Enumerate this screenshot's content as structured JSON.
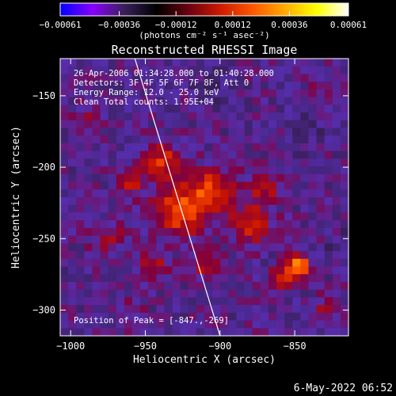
{
  "footer_date": "6-May-2022 06:52",
  "chart_data": {
    "type": "heatmap",
    "title": "Reconstructed RHESSI Image",
    "xlabel": "Heliocentric X (arcsec)",
    "ylabel": "Heliocentric Y (arcsec)",
    "xlim": [
      -1007,
      -814
    ],
    "ylim": [
      -318,
      -124
    ],
    "x_ticks": [
      {
        "value": -1000,
        "label": "−1000"
      },
      {
        "value": -950,
        "label": "−950"
      },
      {
        "value": -900,
        "label": "−900"
      },
      {
        "value": -850,
        "label": "−850"
      }
    ],
    "y_ticks": [
      {
        "value": -150,
        "label": "−150"
      },
      {
        "value": -200,
        "label": "−200"
      },
      {
        "value": -250,
        "label": "−250"
      },
      {
        "value": -300,
        "label": "−300"
      }
    ],
    "colorbar": {
      "range": [
        -0.00061,
        0.00061
      ],
      "ticks": [
        {
          "value": -0.00061,
          "label": "−0.00061"
        },
        {
          "value": -0.00036,
          "label": "−0.00036"
        },
        {
          "value": -0.00012,
          "label": "−0.00012"
        },
        {
          "value": 0.00012,
          "label": "0.00012"
        },
        {
          "value": 0.00036,
          "label": "0.00036"
        },
        {
          "value": 0.00061,
          "label": "0.00061"
        }
      ],
      "unit_label": "(photons cm⁻² s⁻¹ asec⁻²)",
      "colors": [
        "#0000ff",
        "#8800ff",
        "#3a1f5a",
        "#000000",
        "#6a0010",
        "#cc1a00",
        "#ff5500",
        "#ffaa00",
        "#ffff00",
        "#ffffff"
      ]
    },
    "annotations": [
      "26-Apr-2006 01:34:28.000 to 01:40:28.000",
      "Detectors: 3F 4F 5F 6F 7F 8F, Att 0",
      "Energy Range: 12.0 - 25.0 keV",
      "Clean     Total counts: 1.95E+04"
    ],
    "peak_label": "Position of Peak = [-847.,-269]",
    "peak": {
      "x": -847,
      "y": -269
    },
    "limb_line": {
      "x": [
        -957,
        -900
      ],
      "y": [
        -124,
        -318
      ],
      "color": "#ffffff"
    },
    "image": {
      "nx": 36,
      "ny": 36,
      "colormap": "rhessi-diverging",
      "background_level": 0.12,
      "sources": [
        {
          "x": -925,
          "y": -230,
          "amp": 0.42,
          "sigma": 12
        },
        {
          "x": -905,
          "y": -215,
          "amp": 0.32,
          "sigma": 10
        },
        {
          "x": -880,
          "y": -240,
          "amp": 0.3,
          "sigma": 9
        },
        {
          "x": -940,
          "y": -195,
          "amp": 0.3,
          "sigma": 9
        },
        {
          "x": -870,
          "y": -215,
          "amp": 0.22,
          "sigma": 8
        },
        {
          "x": -960,
          "y": -210,
          "amp": 0.22,
          "sigma": 7
        },
        {
          "x": -975,
          "y": -250,
          "amp": 0.18,
          "sigma": 8
        },
        {
          "x": -945,
          "y": -270,
          "amp": 0.22,
          "sigma": 7
        },
        {
          "x": -910,
          "y": -270,
          "amp": 0.18,
          "sigma": 7
        },
        {
          "x": -847,
          "y": -269,
          "amp": 0.55,
          "sigma": 5
        },
        {
          "x": -858,
          "y": -278,
          "amp": 0.25,
          "sigma": 6
        },
        {
          "x": -990,
          "y": -170,
          "amp": 0.16,
          "sigma": 6
        },
        {
          "x": -830,
          "y": -300,
          "amp": 0.16,
          "sigma": 6
        },
        {
          "x": -960,
          "y": -300,
          "amp": 0.14,
          "sigma": 6
        },
        {
          "x": -835,
          "y": -140,
          "amp": 0.1,
          "sigma": 5
        },
        {
          "x": -845,
          "y": -175,
          "amp": -0.12,
          "sigma": 7
        },
        {
          "x": -905,
          "y": -145,
          "amp": -0.1,
          "sigma": 8
        },
        {
          "x": -820,
          "y": -255,
          "amp": -0.1,
          "sigma": 6
        }
      ]
    }
  }
}
